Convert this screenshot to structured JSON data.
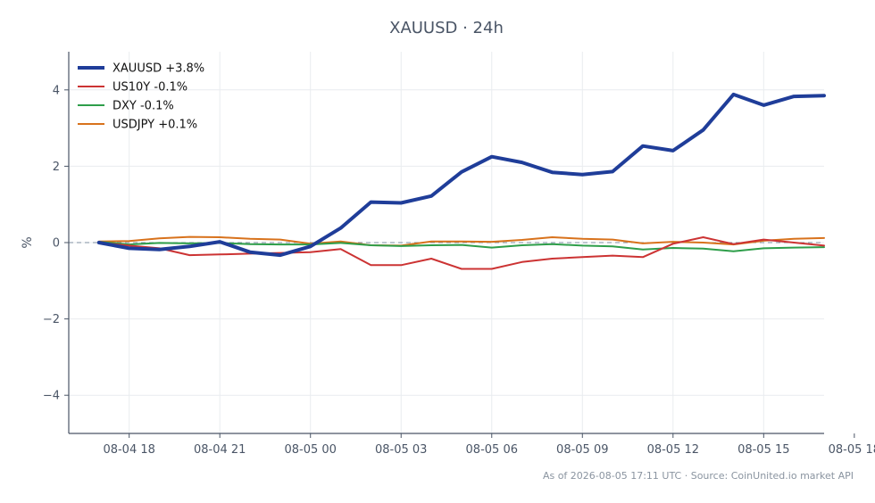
{
  "chart_data": {
    "type": "line",
    "title": "XAUUSD · 24h",
    "xlabel": "",
    "ylabel": "%",
    "ylim": [
      -5,
      5
    ],
    "yticks": [
      -4,
      -2,
      0,
      2,
      4
    ],
    "ytick_labels": [
      "−4",
      "−2",
      "0",
      "2",
      "4"
    ],
    "xlim_hours": [
      16,
      41
    ],
    "x_hours": [
      17,
      18,
      19,
      20,
      21,
      22,
      23,
      24,
      25,
      26,
      27,
      28,
      29,
      30,
      31,
      32,
      33,
      34,
      35,
      36,
      37,
      38,
      39,
      40,
      41
    ],
    "xticks": [
      {
        "hour": 18,
        "label": "08-04 18"
      },
      {
        "hour": 21,
        "label": "08-04 21"
      },
      {
        "hour": 24,
        "label": "08-05 00"
      },
      {
        "hour": 27,
        "label": "08-05 03"
      },
      {
        "hour": 30,
        "label": "08-05 06"
      },
      {
        "hour": 33,
        "label": "08-05 09"
      },
      {
        "hour": 36,
        "label": "08-05 12"
      },
      {
        "hour": 39,
        "label": "08-05 15"
      },
      {
        "hour": 42,
        "label": "08-05 18"
      }
    ],
    "grid": true,
    "zero_line": true,
    "legend_position": "top-left",
    "series": [
      {
        "name": "XAUUSD +3.8%",
        "color": "#1f3d99",
        "width": 4,
        "values": [
          0.0,
          -0.15,
          -0.18,
          -0.1,
          0.02,
          -0.25,
          -0.33,
          -0.1,
          0.38,
          1.06,
          1.04,
          1.22,
          1.85,
          2.25,
          2.1,
          1.84,
          1.78,
          1.86,
          2.53,
          2.41,
          2.95,
          3.88,
          3.6,
          3.83,
          3.85
        ]
      },
      {
        "name": "US10Y -0.1%",
        "color": "#cc3333",
        "width": 2,
        "values": [
          0.0,
          -0.08,
          -0.15,
          -0.33,
          -0.31,
          -0.29,
          -0.27,
          -0.25,
          -0.17,
          -0.59,
          -0.59,
          -0.42,
          -0.69,
          -0.69,
          -0.51,
          -0.42,
          -0.38,
          -0.34,
          -0.38,
          -0.03,
          0.14,
          -0.04,
          0.08,
          0.0,
          -0.08
        ]
      },
      {
        "name": "DXY -0.1%",
        "color": "#2e9e4a",
        "width": 2,
        "values": [
          0.02,
          -0.05,
          -0.01,
          -0.02,
          -0.01,
          -0.04,
          -0.05,
          -0.05,
          -0.01,
          -0.07,
          -0.09,
          -0.07,
          -0.06,
          -0.13,
          -0.07,
          -0.04,
          -0.08,
          -0.1,
          -0.18,
          -0.14,
          -0.16,
          -0.23,
          -0.15,
          -0.13,
          -0.12
        ]
      },
      {
        "name": "USDJPY +0.1%",
        "color": "#d8721c",
        "width": 2,
        "values": [
          0.03,
          0.04,
          0.11,
          0.15,
          0.14,
          0.1,
          0.08,
          -0.03,
          0.03,
          -0.07,
          -0.08,
          0.03,
          0.03,
          0.02,
          0.07,
          0.14,
          0.1,
          0.08,
          -0.02,
          0.02,
          0.0,
          -0.05,
          0.05,
          0.1,
          0.12
        ]
      }
    ],
    "footer": "As of 2026-08-05 17:11 UTC · Source: CoinUnited.io market API"
  }
}
